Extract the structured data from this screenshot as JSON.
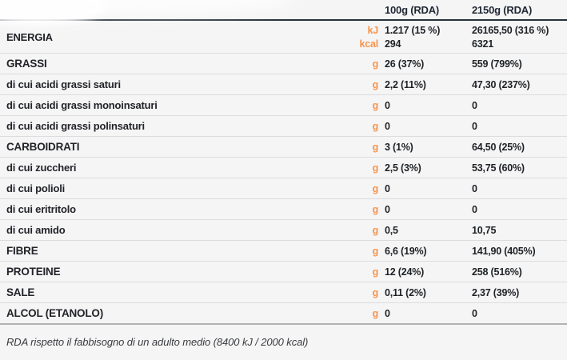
{
  "accent_color": "#f7944d",
  "header_rule_color": "#27323e",
  "header": {
    "col_100g": "100g (RDA)",
    "col_2150g": "2150g (RDA)"
  },
  "rows": [
    {
      "type": "energy",
      "label": "ENERGIA",
      "lines": [
        {
          "unit": "kJ",
          "v100": "1.217 (15 %)",
          "v2150": "26165,50 (316 %)"
        },
        {
          "unit": "kcal",
          "v100": "294",
          "v2150": "6321"
        }
      ]
    },
    {
      "type": "main",
      "label": "GRASSI",
      "unit": "g",
      "v100": "26 (37%)",
      "v2150": "559 (799%)"
    },
    {
      "type": "sub",
      "label": "di cui acidi grassi saturi",
      "unit": "g",
      "v100": "2,2 (11%)",
      "v2150": "47,30 (237%)"
    },
    {
      "type": "sub",
      "label": "di cui acidi grassi monoinsaturi",
      "unit": "g",
      "v100": "0",
      "v2150": "0"
    },
    {
      "type": "sub",
      "label": "di cui acidi grassi polinsaturi",
      "unit": "g",
      "v100": "0",
      "v2150": "0"
    },
    {
      "type": "main",
      "label": "CARBOIDRATI",
      "unit": "g",
      "v100": "3 (1%)",
      "v2150": "64,50 (25%)"
    },
    {
      "type": "sub",
      "label": "di cui zuccheri",
      "unit": "g",
      "v100": "2,5 (3%)",
      "v2150": "53,75 (60%)"
    },
    {
      "type": "sub",
      "label": "di cui polioli",
      "unit": "g",
      "v100": "0",
      "v2150": "0"
    },
    {
      "type": "sub",
      "label": "di cui eritritolo",
      "unit": "g",
      "v100": "0",
      "v2150": "0"
    },
    {
      "type": "sub",
      "label": "di cui amido",
      "unit": "g",
      "v100": "0,5",
      "v2150": "10,75"
    },
    {
      "type": "main",
      "label": "FIBRE",
      "unit": "g",
      "v100": "6,6 (19%)",
      "v2150": "141,90 (405%)"
    },
    {
      "type": "main",
      "label": "PROTEINE",
      "unit": "g",
      "v100": "12 (24%)",
      "v2150": "258 (516%)"
    },
    {
      "type": "main",
      "label": "SALE",
      "unit": "g",
      "v100": "0,11 (2%)",
      "v2150": "2,37 (39%)"
    },
    {
      "type": "main",
      "label": "ALCOL (ETANOLO)",
      "unit": "g",
      "v100": "0",
      "v2150": "0",
      "last": true
    }
  ],
  "footer_note": "RDA rispetto il fabbisogno di un adulto medio (8400 kJ / 2000 kcal)"
}
